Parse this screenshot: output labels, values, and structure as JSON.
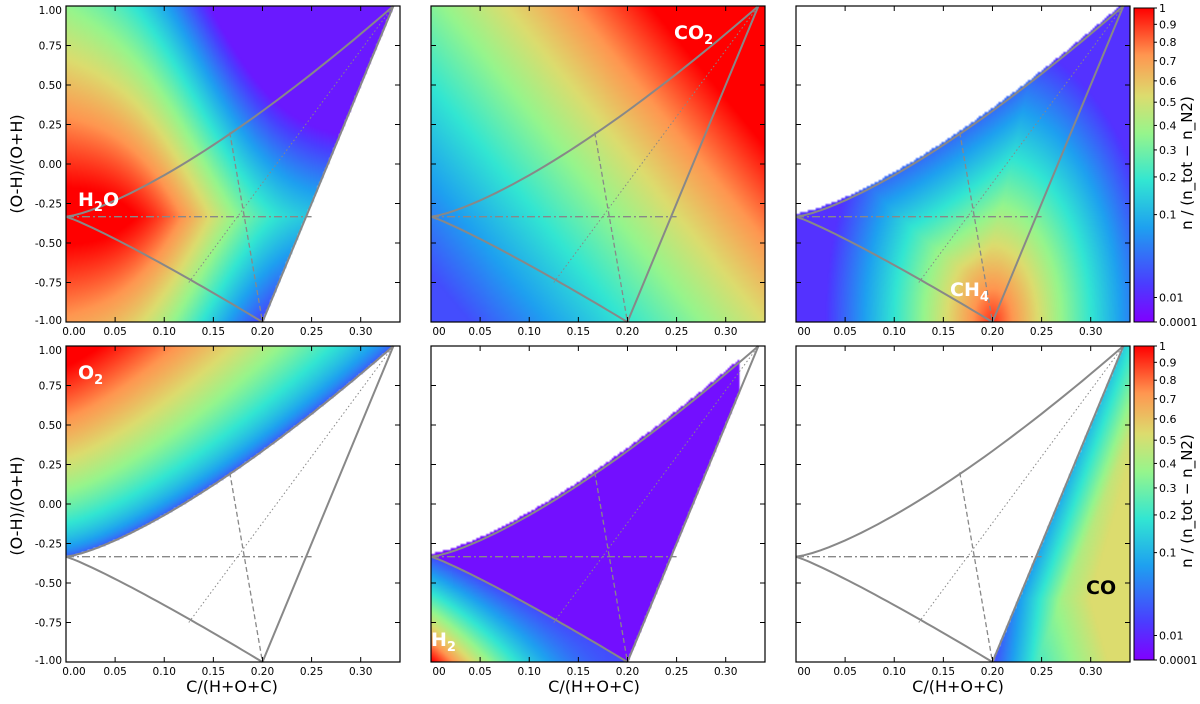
{
  "figure": {
    "ylabel": "(O-H)/(O+H)",
    "xlabel": "C/(H+O+C)",
    "colorbar_label": "n / (n_tot − n_N2)",
    "colormap": "rainbow",
    "colors": {
      "boundary": "#888888",
      "axis": "#000000",
      "label_light": "#ffffff",
      "label_dark": "#000000"
    }
  },
  "chart_data": [
    {
      "type": "heatmap",
      "species": "H2O",
      "label_main": "H",
      "label_sub": "2",
      "label_tail": "O",
      "label_color": "light",
      "xlim": [
        0,
        0.34
      ],
      "ylim": [
        -1,
        1
      ],
      "x_ticks": [
        "0.00",
        "0.05",
        "0.10",
        "0.15",
        "0.20",
        "0.25",
        "0.30"
      ],
      "y_ticks": [
        "1.00",
        "0.75",
        "0.50",
        "0.25",
        "0.00",
        "-0.25",
        "-0.50",
        "-0.75",
        "-1.00"
      ],
      "region": "left",
      "peak": [
        0.02,
        -0.33
      ],
      "peak_level": 1.0
    },
    {
      "type": "heatmap",
      "species": "CO2",
      "label_main": "CO",
      "label_sub": "2",
      "label_tail": "",
      "label_color": "light",
      "xlim": [
        0,
        0.34
      ],
      "ylim": [
        -1,
        1
      ],
      "x_ticks": [
        "00",
        "0.05",
        "0.10",
        "0.15",
        "0.20",
        "0.25",
        "0.30"
      ],
      "region": "left",
      "peak": [
        0.33,
        0.98
      ],
      "peak_level": 1.0
    },
    {
      "type": "heatmap",
      "species": "CH4",
      "label_main": "CH",
      "label_sub": "4",
      "label_tail": "",
      "label_color": "light",
      "xlim": [
        0,
        0.34
      ],
      "ylim": [
        -1,
        1
      ],
      "x_ticks": [
        "00",
        "0.05",
        "0.10",
        "0.15",
        "0.20",
        "0.25",
        "0.30"
      ],
      "region": "right",
      "peak": [
        0.2,
        -1.0
      ],
      "peak_level": 1.0,
      "colorbar_ticks": [
        "1",
        "0.9",
        "0.8",
        "0.7",
        "0.6",
        "0.5",
        "0.4",
        "0.3",
        "0.2",
        "0.1",
        "0.01",
        "0.0001"
      ]
    },
    {
      "type": "heatmap",
      "species": "O2",
      "label_main": "O",
      "label_sub": "2",
      "label_tail": "",
      "label_color": "light",
      "xlim": [
        0,
        0.34
      ],
      "ylim": [
        -1,
        1
      ],
      "x_ticks": [
        "0.00",
        "0.05",
        "0.10",
        "0.15",
        "0.20",
        "0.25",
        "0.30"
      ],
      "y_ticks": [
        "1.00",
        "0.75",
        "0.50",
        "0.25",
        "0.00",
        "-0.25",
        "-0.50",
        "-0.75",
        "-1.00"
      ],
      "region": "upper",
      "peak": [
        0.0,
        1.0
      ],
      "peak_level": 1.0
    },
    {
      "type": "heatmap",
      "species": "H2",
      "label_main": "H",
      "label_sub": "2",
      "label_tail": "",
      "label_color": "light",
      "xlim": [
        0,
        0.34
      ],
      "ylim": [
        -1,
        1
      ],
      "x_ticks": [
        "00",
        "0.05",
        "0.10",
        "0.15",
        "0.20",
        "0.25",
        "0.30"
      ],
      "region": "h2",
      "peak": [
        0.0,
        -1.0
      ],
      "peak_level": 1.0
    },
    {
      "type": "heatmap",
      "species": "CO",
      "label_main": "CO",
      "label_sub": "",
      "label_tail": "",
      "label_color": "dark",
      "xlim": [
        0,
        0.34
      ],
      "ylim": [
        -1,
        1
      ],
      "x_ticks": [
        "00",
        "0.05",
        "0.10",
        "0.15",
        "0.20",
        "0.25",
        "0.30"
      ],
      "region": "co",
      "peak": [
        0.33,
        -0.6
      ],
      "peak_level": 0.5,
      "colorbar_ticks": [
        "1",
        "0.9",
        "0.8",
        "0.7",
        "0.6",
        "0.5",
        "0.4",
        "0.3",
        "0.2",
        "0.1",
        "0.01",
        "0.0001"
      ]
    }
  ]
}
